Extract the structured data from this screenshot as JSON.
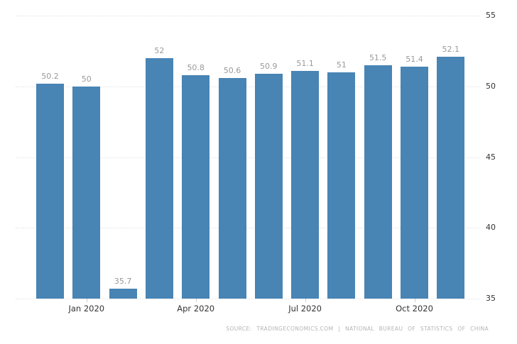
{
  "chart_data": {
    "type": "bar",
    "title": "",
    "xlabel": "",
    "ylabel": "",
    "values": [
      50.2,
      50,
      35.7,
      52,
      50.8,
      50.6,
      50.9,
      51.1,
      51,
      51.5,
      51.4,
      52.1
    ],
    "bar_labels": [
      "50.2",
      "50",
      "35.7",
      "52",
      "50.8",
      "50.6",
      "50.9",
      "51.1",
      "51",
      "51.5",
      "51.4",
      "52.1"
    ],
    "x_ticks": [
      {
        "bar_index": 1,
        "label": "Jan 2020"
      },
      {
        "bar_index": 4,
        "label": "Apr 2020"
      },
      {
        "bar_index": 7,
        "label": "Jul 2020"
      },
      {
        "bar_index": 10,
        "label": "Oct 2020"
      }
    ],
    "y_ticks": [
      "55",
      "50",
      "45",
      "40",
      "35"
    ],
    "ylim": [
      35,
      55
    ],
    "grid": "horizontal-dotted",
    "legend": "none",
    "colors": {
      "bar": "#4884b4",
      "grid": "#e2e2e2",
      "value_label": "#999999",
      "axis_label": "#333333",
      "source_text": "#b5b5b5",
      "background": "#ffffff"
    },
    "source_text": "SOURCE: TRADINGECONOMICS.COM | NATIONAL BUREAU OF STATISTICS OF CHINA"
  }
}
